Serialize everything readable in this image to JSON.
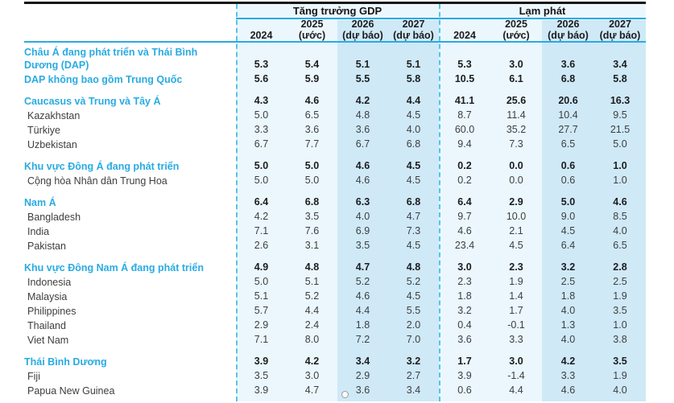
{
  "table": {
    "groups": [
      {
        "title": "Tăng trưởng GDP"
      },
      {
        "title": "Lạm phát"
      }
    ],
    "year_headers": [
      {
        "line1": "",
        "line2": "2024"
      },
      {
        "line1": "2025",
        "line2": "(ước)"
      },
      {
        "line1": "2026",
        "line2": "(dự báo)"
      },
      {
        "line1": "2027",
        "line2": "(dự báo)"
      }
    ],
    "rows": [
      {
        "label": "Châu Á đang phát triển và Thái Bình Dương (DAP)",
        "kind": "region",
        "gap_before": false,
        "gdp": [
          "5.3",
          "5.4",
          "5.1",
          "5.1"
        ],
        "inflation": [
          "5.3",
          "3.0",
          "3.6",
          "3.4"
        ]
      },
      {
        "label": "DAP không bao gồm Trung Quốc",
        "kind": "region",
        "gap_before": false,
        "gdp": [
          "5.6",
          "5.9",
          "5.5",
          "5.8"
        ],
        "inflation": [
          "10.5",
          "6.1",
          "6.8",
          "5.8"
        ]
      },
      {
        "label": "Caucasus và Trung và Tây Á",
        "kind": "region",
        "gap_before": true,
        "gdp": [
          "4.3",
          "4.6",
          "4.2",
          "4.4"
        ],
        "inflation": [
          "41.1",
          "25.6",
          "20.6",
          "16.3"
        ]
      },
      {
        "label": "Kazakhstan",
        "kind": "country",
        "gap_before": false,
        "gdp": [
          "5.0",
          "6.5",
          "4.8",
          "4.5"
        ],
        "inflation": [
          "8.7",
          "11.4",
          "10.4",
          "9.5"
        ]
      },
      {
        "label": "Türkiye",
        "kind": "country",
        "gap_before": false,
        "gdp": [
          "3.3",
          "3.6",
          "3.6",
          "4.0"
        ],
        "inflation": [
          "60.0",
          "35.2",
          "27.7",
          "21.5"
        ]
      },
      {
        "label": "Uzbekistan",
        "kind": "country",
        "gap_before": false,
        "gdp": [
          "6.7",
          "7.7",
          "6.7",
          "6.8"
        ],
        "inflation": [
          "9.4",
          "7.3",
          "6.5",
          "5.0"
        ]
      },
      {
        "label": "Khu vực Đông Á đang phát triển",
        "kind": "region",
        "gap_before": true,
        "gdp": [
          "5.0",
          "5.0",
          "4.6",
          "4.5"
        ],
        "inflation": [
          "0.2",
          "0.0",
          "0.6",
          "1.0"
        ]
      },
      {
        "label": "Cộng hòa Nhân dân Trung Hoa",
        "kind": "country",
        "gap_before": false,
        "gdp": [
          "5.0",
          "5.0",
          "4.6",
          "4.5"
        ],
        "inflation": [
          "0.2",
          "0.0",
          "0.6",
          "1.0"
        ]
      },
      {
        "label": "Nam Á",
        "kind": "region",
        "gap_before": true,
        "gdp": [
          "6.4",
          "6.8",
          "6.3",
          "6.8"
        ],
        "inflation": [
          "6.4",
          "2.9",
          "5.0",
          "4.6"
        ]
      },
      {
        "label": "Bangladesh",
        "kind": "country",
        "gap_before": false,
        "gdp": [
          "4.2",
          "3.5",
          "4.0",
          "4.7"
        ],
        "inflation": [
          "9.7",
          "10.0",
          "9.0",
          "8.5"
        ]
      },
      {
        "label": "India",
        "kind": "country",
        "gap_before": false,
        "gdp": [
          "7.1",
          "7.6",
          "6.9",
          "7.3"
        ],
        "inflation": [
          "4.6",
          "2.1",
          "4.5",
          "4.0"
        ]
      },
      {
        "label": "Pakistan",
        "kind": "country",
        "gap_before": false,
        "gdp": [
          "2.6",
          "3.1",
          "3.5",
          "4.5"
        ],
        "inflation": [
          "23.4",
          "4.5",
          "6.4",
          "6.5"
        ]
      },
      {
        "label": "Khu vực Đông Nam Á đang phát triển",
        "kind": "region",
        "gap_before": true,
        "gdp": [
          "4.9",
          "4.8",
          "4.7",
          "4.8"
        ],
        "inflation": [
          "3.0",
          "2.3",
          "3.2",
          "2.8"
        ]
      },
      {
        "label": "Indonesia",
        "kind": "country",
        "gap_before": false,
        "gdp": [
          "5.0",
          "5.1",
          "5.2",
          "5.2"
        ],
        "inflation": [
          "2.3",
          "1.9",
          "2.5",
          "2.5"
        ]
      },
      {
        "label": "Malaysia",
        "kind": "country",
        "gap_before": false,
        "gdp": [
          "5.1",
          "5.2",
          "4.6",
          "4.5"
        ],
        "inflation": [
          "1.8",
          "1.4",
          "1.8",
          "1.9"
        ]
      },
      {
        "label": "Philippines",
        "kind": "country",
        "gap_before": false,
        "gdp": [
          "5.7",
          "4.4",
          "4.4",
          "5.5"
        ],
        "inflation": [
          "3.2",
          "1.7",
          "4.0",
          "3.5"
        ]
      },
      {
        "label": "Thailand",
        "kind": "country",
        "gap_before": false,
        "gdp": [
          "2.9",
          "2.4",
          "1.8",
          "2.0"
        ],
        "inflation": [
          "0.4",
          "-0.1",
          "1.3",
          "1.0"
        ]
      },
      {
        "label": "Viet Nam",
        "kind": "country",
        "gap_before": false,
        "gdp": [
          "7.1",
          "8.0",
          "7.2",
          "7.0"
        ],
        "inflation": [
          "3.6",
          "3.3",
          "4.0",
          "3.8"
        ]
      },
      {
        "label": "Thái Bình Dương",
        "kind": "region",
        "gap_before": true,
        "gdp": [
          "3.9",
          "4.2",
          "3.4",
          "3.2"
        ],
        "inflation": [
          "1.7",
          "3.0",
          "4.2",
          "3.5"
        ]
      },
      {
        "label": "Fiji",
        "kind": "country",
        "gap_before": false,
        "gdp": [
          "3.5",
          "3.0",
          "2.9",
          "2.7"
        ],
        "inflation": [
          "3.9",
          "-1.4",
          "3.3",
          "1.9"
        ]
      },
      {
        "label": "Papua New Guinea",
        "kind": "country",
        "gap_before": false,
        "gdp": [
          "3.9",
          "4.7",
          "3.6",
          "3.4"
        ],
        "inflation": [
          "0.6",
          "4.4",
          "4.6",
          "4.0"
        ]
      }
    ]
  },
  "colors": {
    "accent_blue": "#29ABE2",
    "dashed_divider": "#55C4EB",
    "current_columns_bg": "#EBF7FD",
    "forecast_columns_bg": "#CFE9F7",
    "top_border": "#141414"
  }
}
